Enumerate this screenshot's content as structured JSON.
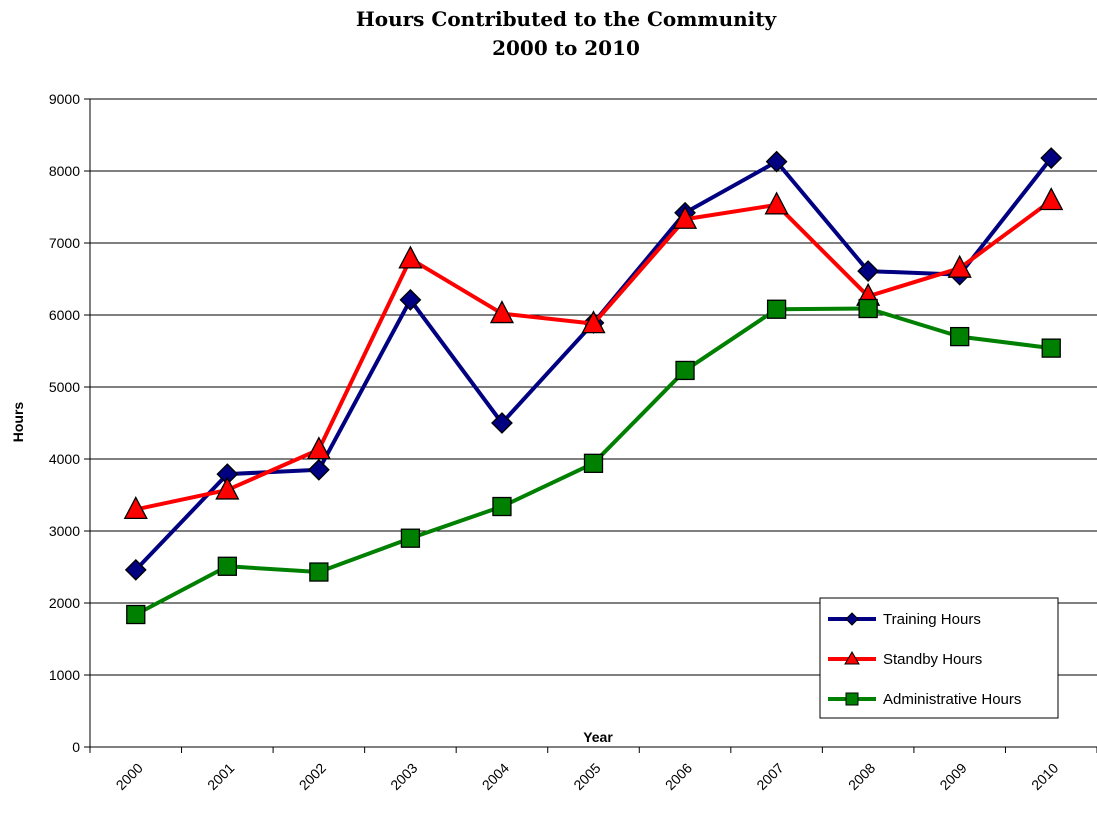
{
  "chart_data": {
    "type": "line",
    "title": "Hours Contributed to the Community",
    "subtitle": "2000 to 2010",
    "xlabel": "Year",
    "ylabel": "Hours",
    "ylim": [
      0,
      9000
    ],
    "yticks": [
      0,
      1000,
      2000,
      3000,
      4000,
      5000,
      6000,
      7000,
      8000,
      9000
    ],
    "categories": [
      "2000",
      "2001",
      "2002",
      "2003",
      "2004",
      "2005",
      "2006",
      "2007",
      "2008",
      "2009",
      "2010"
    ],
    "grid": "horizontal",
    "legend_position": "bottom-right",
    "series": [
      {
        "name": "Training Hours",
        "color": "#000080",
        "marker": "diamond",
        "values": [
          2460,
          3790,
          3850,
          6210,
          4500,
          5890,
          7420,
          8130,
          6610,
          6560,
          8180
        ]
      },
      {
        "name": "Standby Hours",
        "color": "#ff0000",
        "marker": "triangle",
        "values": [
          3300,
          3570,
          4130,
          6780,
          6020,
          5880,
          7330,
          7530,
          6260,
          6650,
          7590
        ]
      },
      {
        "name": "Administrative Hours",
        "color": "#008000",
        "marker": "square",
        "values": [
          1840,
          2510,
          2430,
          2900,
          3340,
          3940,
          5230,
          6080,
          6090,
          5700,
          5540
        ]
      }
    ]
  }
}
